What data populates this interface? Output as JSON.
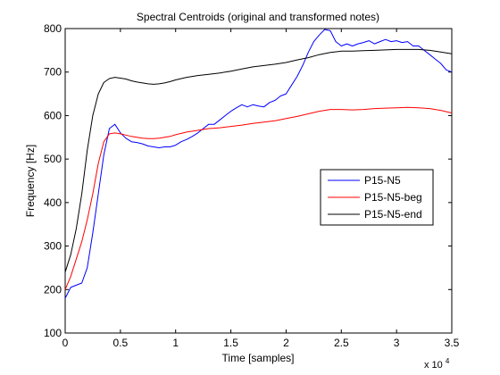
{
  "chart_data": {
    "type": "line",
    "title": "Spectral Centroids (original and transformed notes)",
    "xlabel": "Time [samples]",
    "ylabel": "Frequency [Hz]",
    "x_multiplier_label": "x 10",
    "x_multiplier_exp": "4",
    "xlim": [
      0,
      3.5
    ],
    "ylim": [
      100,
      800
    ],
    "xticks": [
      0,
      0.5,
      1,
      1.5,
      2,
      2.5,
      3,
      3.5
    ],
    "xtick_labels": [
      "0",
      "0.5",
      "1",
      "1.5",
      "2",
      "2.5",
      "3",
      "3.5"
    ],
    "yticks": [
      100,
      200,
      300,
      400,
      500,
      600,
      700,
      800
    ],
    "ytick_labels": [
      "100",
      "200",
      "300",
      "400",
      "500",
      "600",
      "700",
      "800"
    ],
    "grid": false,
    "legend_position": "center-right",
    "series": [
      {
        "name": "P15-N5",
        "color": "#0000ff",
        "points": [
          [
            0,
            180
          ],
          [
            0.05,
            205
          ],
          [
            0.1,
            210
          ],
          [
            0.15,
            215
          ],
          [
            0.2,
            250
          ],
          [
            0.25,
            330
          ],
          [
            0.3,
            420
          ],
          [
            0.35,
            510
          ],
          [
            0.4,
            570
          ],
          [
            0.45,
            580
          ],
          [
            0.5,
            560
          ],
          [
            0.55,
            548
          ],
          [
            0.6,
            540
          ],
          [
            0.65,
            538
          ],
          [
            0.7,
            535
          ],
          [
            0.75,
            530
          ],
          [
            0.8,
            528
          ],
          [
            0.85,
            526
          ],
          [
            0.9,
            528
          ],
          [
            0.95,
            528
          ],
          [
            1.0,
            532
          ],
          [
            1.05,
            540
          ],
          [
            1.1,
            545
          ],
          [
            1.15,
            552
          ],
          [
            1.2,
            560
          ],
          [
            1.25,
            570
          ],
          [
            1.3,
            580
          ],
          [
            1.35,
            580
          ],
          [
            1.4,
            590
          ],
          [
            1.45,
            600
          ],
          [
            1.5,
            610
          ],
          [
            1.55,
            618
          ],
          [
            1.6,
            625
          ],
          [
            1.65,
            620
          ],
          [
            1.7,
            625
          ],
          [
            1.75,
            622
          ],
          [
            1.8,
            620
          ],
          [
            1.85,
            630
          ],
          [
            1.9,
            635
          ],
          [
            1.95,
            645
          ],
          [
            2.0,
            650
          ],
          [
            2.05,
            670
          ],
          [
            2.1,
            690
          ],
          [
            2.15,
            715
          ],
          [
            2.2,
            745
          ],
          [
            2.25,
            770
          ],
          [
            2.3,
            785
          ],
          [
            2.35,
            798
          ],
          [
            2.4,
            795
          ],
          [
            2.45,
            770
          ],
          [
            2.5,
            760
          ],
          [
            2.55,
            765
          ],
          [
            2.6,
            760
          ],
          [
            2.65,
            765
          ],
          [
            2.7,
            768
          ],
          [
            2.75,
            772
          ],
          [
            2.8,
            765
          ],
          [
            2.85,
            770
          ],
          [
            2.9,
            775
          ],
          [
            2.95,
            770
          ],
          [
            3.0,
            772
          ],
          [
            3.05,
            768
          ],
          [
            3.1,
            770
          ],
          [
            3.15,
            760
          ],
          [
            3.2,
            760
          ],
          [
            3.25,
            750
          ],
          [
            3.3,
            740
          ],
          [
            3.35,
            730
          ],
          [
            3.4,
            720
          ],
          [
            3.45,
            705
          ],
          [
            3.5,
            700
          ]
        ]
      },
      {
        "name": "P15-N5-beg",
        "color": "#ff0000",
        "points": [
          [
            0,
            200
          ],
          [
            0.05,
            230
          ],
          [
            0.1,
            270
          ],
          [
            0.15,
            310
          ],
          [
            0.2,
            360
          ],
          [
            0.25,
            420
          ],
          [
            0.3,
            490
          ],
          [
            0.35,
            540
          ],
          [
            0.4,
            558
          ],
          [
            0.45,
            560
          ],
          [
            0.5,
            558
          ],
          [
            0.55,
            555
          ],
          [
            0.6,
            552
          ],
          [
            0.65,
            550
          ],
          [
            0.7,
            548
          ],
          [
            0.75,
            547
          ],
          [
            0.8,
            547
          ],
          [
            0.85,
            548
          ],
          [
            0.9,
            550
          ],
          [
            0.95,
            552
          ],
          [
            1.0,
            556
          ],
          [
            1.1,
            562
          ],
          [
            1.2,
            566
          ],
          [
            1.3,
            570
          ],
          [
            1.4,
            572
          ],
          [
            1.5,
            575
          ],
          [
            1.6,
            578
          ],
          [
            1.7,
            582
          ],
          [
            1.8,
            585
          ],
          [
            1.9,
            588
          ],
          [
            2.0,
            593
          ],
          [
            2.1,
            598
          ],
          [
            2.2,
            604
          ],
          [
            2.3,
            610
          ],
          [
            2.4,
            614
          ],
          [
            2.5,
            614
          ],
          [
            2.6,
            613
          ],
          [
            2.7,
            614
          ],
          [
            2.8,
            616
          ],
          [
            2.9,
            617
          ],
          [
            3.0,
            618
          ],
          [
            3.1,
            619
          ],
          [
            3.2,
            618
          ],
          [
            3.3,
            616
          ],
          [
            3.4,
            612
          ],
          [
            3.5,
            606
          ]
        ]
      },
      {
        "name": "P15-N5-end",
        "color": "#000000",
        "points": [
          [
            0,
            240
          ],
          [
            0.05,
            280
          ],
          [
            0.1,
            340
          ],
          [
            0.15,
            420
          ],
          [
            0.2,
            520
          ],
          [
            0.25,
            600
          ],
          [
            0.3,
            650
          ],
          [
            0.35,
            676
          ],
          [
            0.4,
            685
          ],
          [
            0.45,
            688
          ],
          [
            0.5,
            686
          ],
          [
            0.55,
            684
          ],
          [
            0.6,
            680
          ],
          [
            0.65,
            677
          ],
          [
            0.7,
            675
          ],
          [
            0.75,
            673
          ],
          [
            0.8,
            672
          ],
          [
            0.85,
            673
          ],
          [
            0.9,
            675
          ],
          [
            0.95,
            678
          ],
          [
            1.0,
            682
          ],
          [
            1.1,
            688
          ],
          [
            1.2,
            692
          ],
          [
            1.3,
            695
          ],
          [
            1.4,
            698
          ],
          [
            1.5,
            702
          ],
          [
            1.6,
            707
          ],
          [
            1.7,
            712
          ],
          [
            1.8,
            715
          ],
          [
            1.9,
            718
          ],
          [
            2.0,
            722
          ],
          [
            2.1,
            728
          ],
          [
            2.2,
            733
          ],
          [
            2.3,
            740
          ],
          [
            2.4,
            745
          ],
          [
            2.5,
            748
          ],
          [
            2.6,
            748
          ],
          [
            2.7,
            749
          ],
          [
            2.8,
            750
          ],
          [
            2.9,
            751
          ],
          [
            3.0,
            752
          ],
          [
            3.1,
            752
          ],
          [
            3.2,
            752
          ],
          [
            3.3,
            750
          ],
          [
            3.4,
            746
          ],
          [
            3.5,
            742
          ]
        ]
      }
    ]
  }
}
